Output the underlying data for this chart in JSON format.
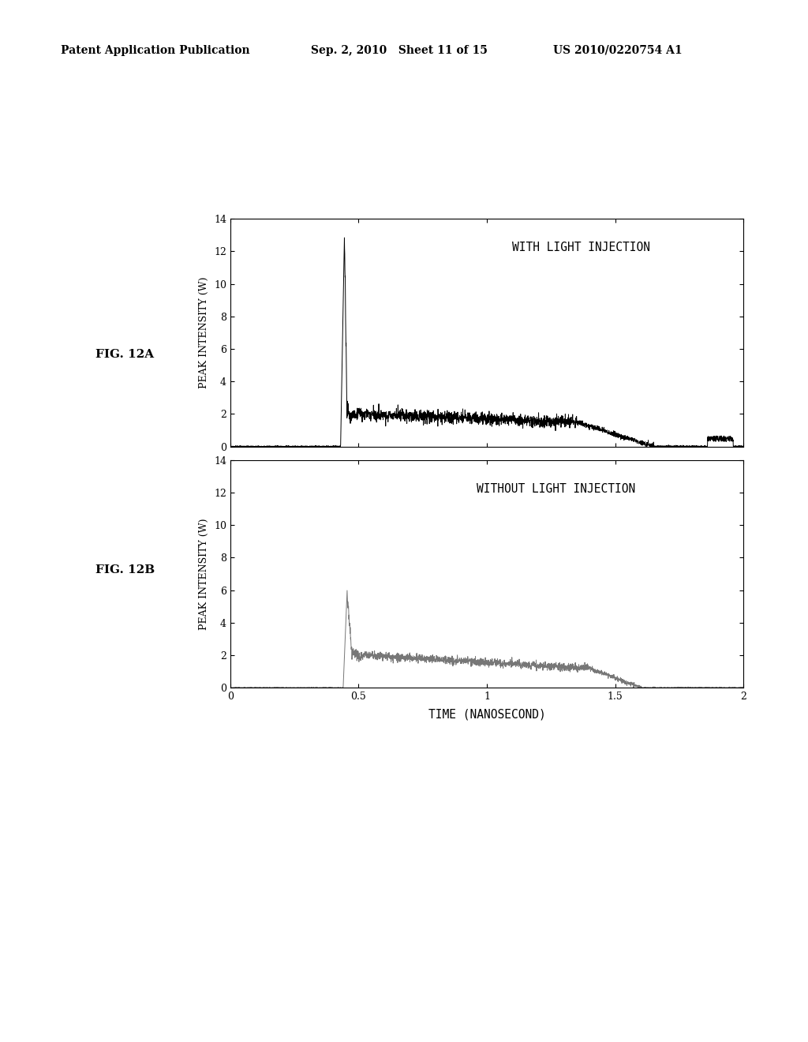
{
  "header_left": "Patent Application Publication",
  "header_mid": "Sep. 2, 2010   Sheet 11 of 15",
  "header_right": "US 2010/0220754 A1",
  "fig_label_a": "FIG. 12A",
  "fig_label_b": "FIG. 12B",
  "annotation_a": "WITH LIGHT INJECTION",
  "annotation_b": "WITHOUT LIGHT INJECTION",
  "ylabel": "PEAK INTENSITY (W)",
  "xlabel": "TIME (NANOSECOND)",
  "xlim": [
    0,
    2
  ],
  "ylim": [
    0,
    14
  ],
  "xticks": [
    0,
    0.5,
    1,
    1.5,
    2
  ],
  "yticks": [
    0,
    2,
    4,
    6,
    8,
    10,
    12,
    14
  ],
  "bg_color": "#ffffff",
  "line_color_a": "#000000",
  "line_color_b": "#777777",
  "noise_seed_a": 42,
  "noise_seed_b": 99
}
